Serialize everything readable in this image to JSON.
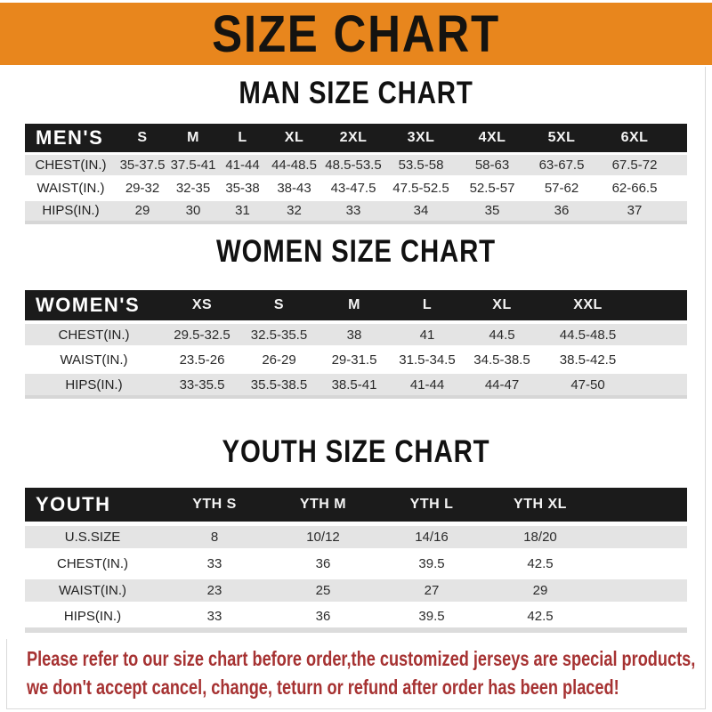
{
  "banner": {
    "title": "SIZE CHART"
  },
  "colors": {
    "banner_orange": "#E8861D",
    "header_black": "#1B1B1B",
    "row_gray": "#E4E4E4",
    "note_red": "#A63232"
  },
  "sections": [
    {
      "heading": "MAN SIZE CHART",
      "table": {
        "label": "MEN'S",
        "columns": [
          "S",
          "M",
          "L",
          "XL",
          "2XL",
          "3XL",
          "4XL",
          "5XL",
          "6XL"
        ],
        "rows": [
          {
            "label": "CHEST(IN.)",
            "values": [
              "35-37.5",
              "37.5-41",
              "41-44",
              "44-48.5",
              "48.5-53.5",
              "53.5-58",
              "58-63",
              "63-67.5",
              "67.5-72"
            ]
          },
          {
            "label": "WAIST(IN.)",
            "values": [
              "29-32",
              "32-35",
              "35-38",
              "38-43",
              "43-47.5",
              "47.5-52.5",
              "52.5-57",
              "57-62",
              "62-66.5"
            ]
          },
          {
            "label": "HIPS(IN.)",
            "values": [
              "29",
              "30",
              "31",
              "32",
              "33",
              "34",
              "35",
              "36",
              "37"
            ]
          }
        ]
      }
    },
    {
      "heading": "WOMEN SIZE CHART",
      "table": {
        "label": "WOMEN'S",
        "columns": [
          "XS",
          "S",
          "M",
          "L",
          "XL",
          "XXL"
        ],
        "rows": [
          {
            "label": "CHEST(IN.)",
            "values": [
              "29.5-32.5",
              "32.5-35.5",
              "38",
              "41",
              "44.5",
              "44.5-48.5"
            ]
          },
          {
            "label": "WAIST(IN.)",
            "values": [
              "23.5-26",
              "26-29",
              "29-31.5",
              "31.5-34.5",
              "34.5-38.5",
              "38.5-42.5"
            ]
          },
          {
            "label": "HIPS(IN.)",
            "values": [
              "33-35.5",
              "35.5-38.5",
              "38.5-41",
              "41-44",
              "44-47",
              "47-50"
            ]
          }
        ]
      }
    },
    {
      "heading": "YOUTH SIZE CHART",
      "table": {
        "label": "YOUTH",
        "columns": [
          "YTH S",
          "YTH M",
          "YTH L",
          "YTH XL"
        ],
        "rows": [
          {
            "label": "U.S.SIZE",
            "values": [
              "8",
              "10/12",
              "14/16",
              "18/20"
            ]
          },
          {
            "label": "CHEST(IN.)",
            "values": [
              "33",
              "36",
              "39.5",
              "42.5"
            ]
          },
          {
            "label": "WAIST(IN.)",
            "values": [
              "23",
              "25",
              "27",
              "29"
            ]
          },
          {
            "label": "HIPS(IN.)",
            "values": [
              "33",
              "36",
              "39.5",
              "42.5"
            ]
          }
        ]
      }
    }
  ],
  "disclaimer": {
    "line1": "Please refer to our size chart before order,the customized jerseys are special products,",
    "line2": "we don't accept cancel, change, teturn or refund after order has been placed!"
  }
}
